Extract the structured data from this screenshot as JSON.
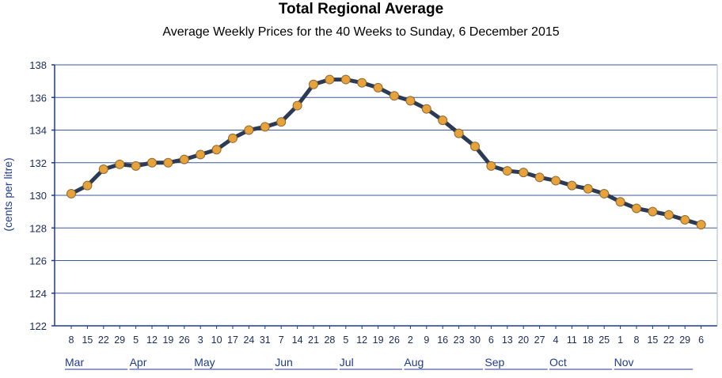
{
  "chart_data": {
    "type": "line",
    "title": "Total Regional Average",
    "subtitle": "Average Weekly Prices for the 40 Weeks to Sunday, 6 December 2015",
    "ylabel": "(cents per litre)",
    "ylim": [
      122,
      138
    ],
    "yticks": [
      122,
      124,
      126,
      128,
      130,
      132,
      134,
      136,
      138
    ],
    "grid": true,
    "legend": "none",
    "colors": {
      "line": "#2b3a55",
      "marker": "#e8a23b",
      "grid": "#3a5a9a",
      "axis": "#1f3b8c"
    },
    "x": [
      "8",
      "15",
      "22",
      "29",
      "5",
      "12",
      "19",
      "26",
      "3",
      "10",
      "17",
      "24",
      "31",
      "7",
      "14",
      "21",
      "28",
      "5",
      "12",
      "19",
      "26",
      "2",
      "9",
      "16",
      "23",
      "30",
      "6",
      "13",
      "20",
      "27",
      "4",
      "11",
      "18",
      "25",
      "1",
      "8",
      "15",
      "22",
      "29",
      "6"
    ],
    "months": [
      {
        "name": "Mar",
        "start": 0,
        "end": 3
      },
      {
        "name": "Apr",
        "start": 4,
        "end": 7
      },
      {
        "name": "May",
        "start": 8,
        "end": 12
      },
      {
        "name": "Jun",
        "start": 13,
        "end": 16
      },
      {
        "name": "Jul",
        "start": 17,
        "end": 20
      },
      {
        "name": "Aug",
        "start": 21,
        "end": 25
      },
      {
        "name": "Sep",
        "start": 26,
        "end": 29
      },
      {
        "name": "Oct",
        "start": 30,
        "end": 33
      },
      {
        "name": "Nov",
        "start": 34,
        "end": 38
      }
    ],
    "series": [
      {
        "values": [
          130.1,
          130.6,
          131.6,
          131.9,
          131.8,
          132.0,
          132.0,
          132.2,
          132.5,
          132.8,
          133.5,
          134.0,
          134.2,
          134.5,
          135.5,
          136.8,
          137.1,
          137.1,
          136.9,
          136.6,
          136.1,
          135.8,
          135.3,
          134.6,
          133.8,
          133.0,
          131.8,
          131.5,
          131.4,
          131.1,
          130.9,
          130.6,
          130.4,
          130.1,
          129.6,
          129.2,
          129.0,
          128.8,
          128.5,
          128.2
        ]
      }
    ]
  }
}
